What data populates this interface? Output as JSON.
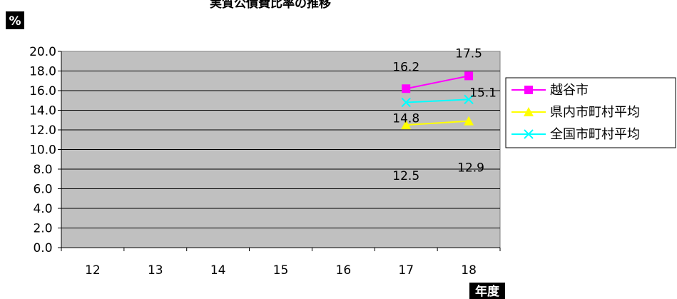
{
  "chart_data": {
    "type": "line",
    "title": "実質公債費比率の推移",
    "ylabel": "%",
    "xlabel": "年度",
    "categories": [
      "12",
      "13",
      "14",
      "15",
      "16",
      "17",
      "18"
    ],
    "ylim": [
      0,
      20
    ],
    "ytick_labels": [
      "0.0",
      "2.0",
      "4.0",
      "6.0",
      "8.0",
      "10.0",
      "12.0",
      "14.0",
      "16.0",
      "18.0",
      "20.0"
    ],
    "plot_background": "#c0c0c0",
    "grid": true,
    "legend_position": "right",
    "series": [
      {
        "name": "越谷市",
        "color": "#ff00ff",
        "marker": "square",
        "values": [
          null,
          null,
          null,
          null,
          null,
          16.2,
          17.5
        ],
        "labels": [
          null,
          null,
          null,
          null,
          null,
          "16.2",
          "17.5"
        ]
      },
      {
        "name": "県内市町村平均",
        "color": "#ffff00",
        "marker": "triangle",
        "values": [
          null,
          null,
          null,
          null,
          null,
          12.5,
          12.9
        ],
        "labels": [
          null,
          null,
          null,
          null,
          null,
          "12.5",
          "12.9"
        ]
      },
      {
        "name": "全国市町村平均",
        "color": "#00ffff",
        "marker": "x",
        "values": [
          null,
          null,
          null,
          null,
          null,
          14.8,
          15.1
        ],
        "labels": [
          null,
          null,
          null,
          null,
          null,
          "14.8",
          "15.1"
        ]
      }
    ]
  }
}
